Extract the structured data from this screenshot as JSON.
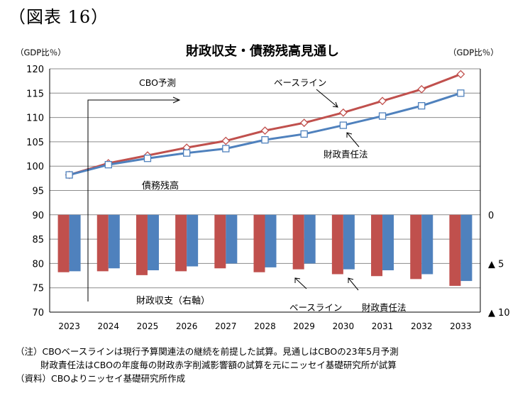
{
  "figure_label": "（図表 16）",
  "notes": [
    "（注）CBOベースラインは現行予算関連法の継続を前提した試算。見通しはCBOの23年5月予測",
    "財政責任法はCBOの年度毎の財政赤字削減影響額の試算を元にニッセイ基礎研究所が試算",
    "（資料）CBOよりニッセイ基礎研究所作成"
  ],
  "chart_data": {
    "type": "line",
    "title": "財政収支・債務残高見通し",
    "left_axis_unit": "（GDP比％）",
    "right_axis_unit": "（GDP比％）",
    "categories": [
      "2023",
      "2024",
      "2025",
      "2026",
      "2027",
      "2028",
      "2029",
      "2030",
      "2031",
      "2032",
      "2033"
    ],
    "left_ylim": [
      70,
      120
    ],
    "left_ticks": [
      "120",
      "115",
      "110",
      "105",
      "100",
      "95",
      "90",
      "85",
      "80",
      "75",
      "70"
    ],
    "right_ticks": [
      "0",
      "▲ 5",
      "▲ 10"
    ],
    "right_tick_values": [
      0,
      -5,
      -10
    ],
    "right_axis_zero_on_left": 90,
    "right_axis_scale": 2,
    "grid": true,
    "debt": {
      "label": "債務残高",
      "series": [
        {
          "name": "ベースライン",
          "color": "#c0504d",
          "marker": "diamond",
          "values": [
            98.2,
            100.6,
            102.2,
            103.8,
            105.2,
            107.3,
            108.9,
            111.0,
            113.4,
            115.8,
            118.9
          ]
        },
        {
          "name": "財政責任法",
          "color": "#4f81bd",
          "marker": "square",
          "values": [
            98.2,
            100.3,
            101.6,
            102.7,
            103.6,
            105.4,
            106.6,
            108.4,
            110.3,
            112.4,
            115.0
          ]
        }
      ]
    },
    "balance": {
      "label": "財政収支（右軸）",
      "series": [
        {
          "name": "ベースライン",
          "color": "#c0504d",
          "values": [
            -5.9,
            -5.8,
            -6.2,
            -5.8,
            -5.5,
            -5.9,
            -5.6,
            -6.1,
            -6.3,
            -6.6,
            -7.3
          ]
        },
        {
          "name": "財政責任法",
          "color": "#4f81bd",
          "values": [
            -5.8,
            -5.5,
            -5.7,
            -5.3,
            -5.0,
            -5.4,
            -5.0,
            -5.6,
            -5.7,
            -6.1,
            -6.8
          ]
        }
      ]
    },
    "annotations": {
      "cbo_forecast": "CBO予測",
      "debt_baseline": "ベースライン",
      "debt_act": "財政責任法",
      "balance_baseline": "ベースライン",
      "balance_act": "財政責任法"
    }
  }
}
